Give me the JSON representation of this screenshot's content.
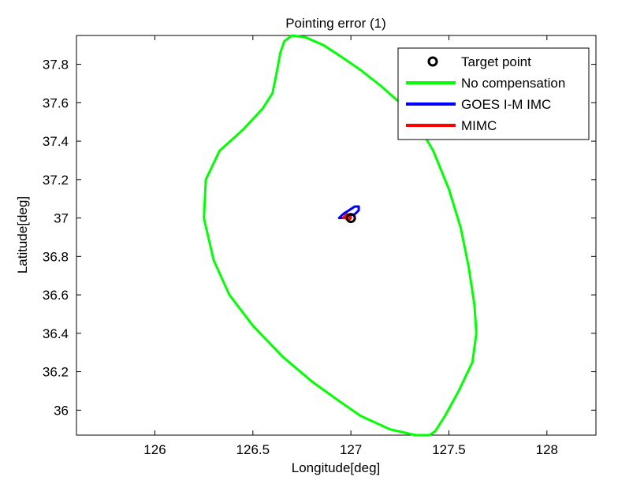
{
  "chart_data": {
    "type": "line",
    "title": "Pointing error (1)",
    "xlabel": "Longitude[deg]",
    "ylabel": "Latitude[deg]",
    "xlim": [
      125.6,
      128.25
    ],
    "ylim": [
      35.87,
      37.95
    ],
    "xticks": [
      126,
      126.5,
      127,
      127.5,
      128
    ],
    "yticks": [
      36,
      36.2,
      36.4,
      36.6,
      36.8,
      37,
      37.2,
      37.4,
      37.6,
      37.8
    ],
    "grid": false,
    "legend_position": "top-right",
    "target_point": {
      "name": "Target point",
      "x": 127.0,
      "y": 37.0,
      "color": "#000000",
      "marker": "circle"
    },
    "series": [
      {
        "name": "No compensation",
        "color": "#00ff00",
        "points": [
          [
            126.7,
            37.95
          ],
          [
            126.77,
            37.94
          ],
          [
            126.86,
            37.9
          ],
          [
            126.95,
            37.84
          ],
          [
            127.05,
            37.77
          ],
          [
            127.15,
            37.69
          ],
          [
            127.25,
            37.6
          ],
          [
            127.34,
            37.49
          ],
          [
            127.42,
            37.35
          ],
          [
            127.5,
            37.15
          ],
          [
            127.56,
            36.95
          ],
          [
            127.6,
            36.75
          ],
          [
            127.63,
            36.55
          ],
          [
            127.64,
            36.4
          ],
          [
            127.62,
            36.25
          ],
          [
            127.55,
            36.1
          ],
          [
            127.48,
            35.97
          ],
          [
            127.43,
            35.89
          ],
          [
            127.4,
            35.87
          ],
          [
            127.33,
            35.87
          ],
          [
            127.2,
            35.9
          ],
          [
            127.05,
            35.97
          ],
          [
            126.95,
            36.04
          ],
          [
            126.8,
            36.15
          ],
          [
            126.65,
            36.28
          ],
          [
            126.5,
            36.44
          ],
          [
            126.38,
            36.6
          ],
          [
            126.3,
            36.78
          ],
          [
            126.25,
            37.0
          ],
          [
            126.26,
            37.2
          ],
          [
            126.33,
            37.35
          ],
          [
            126.45,
            37.46
          ],
          [
            126.55,
            37.57
          ],
          [
            126.6,
            37.65
          ],
          [
            126.62,
            37.75
          ],
          [
            126.64,
            37.86
          ],
          [
            126.66,
            37.92
          ],
          [
            126.7,
            37.95
          ]
        ]
      },
      {
        "name": "GOES I-M IMC",
        "color": "#0000ff",
        "points": [
          [
            126.94,
            37.0
          ],
          [
            126.96,
            37.02
          ],
          [
            126.99,
            37.04
          ],
          [
            127.02,
            37.06
          ],
          [
            127.04,
            37.06
          ],
          [
            127.04,
            37.04
          ],
          [
            127.02,
            37.02
          ],
          [
            126.99,
            37.01
          ],
          [
            126.96,
            37.0
          ],
          [
            126.94,
            37.0
          ]
        ]
      },
      {
        "name": "MIMC",
        "color": "#ff0000",
        "points": [
          [
            126.96,
            37.0
          ],
          [
            126.97,
            37.01
          ],
          [
            126.98,
            37.02
          ],
          [
            126.99,
            37.01
          ],
          [
            127.0,
            37.0
          ],
          [
            126.99,
            36.99
          ],
          [
            126.98,
            36.995
          ],
          [
            126.97,
            37.0
          ],
          [
            126.96,
            37.0
          ]
        ]
      }
    ]
  }
}
